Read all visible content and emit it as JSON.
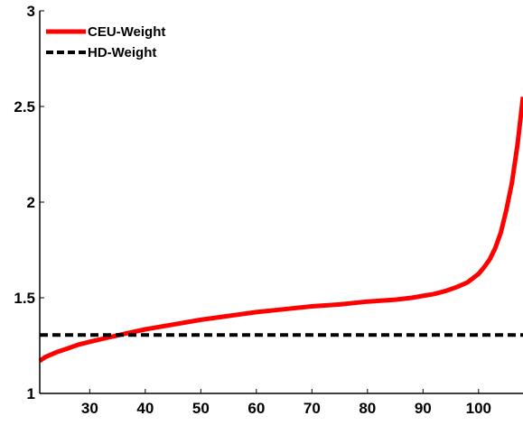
{
  "chart_data": {
    "type": "line",
    "title": "",
    "xlabel": "",
    "ylabel": "",
    "xlim": [
      21,
      108
    ],
    "ylim": [
      1,
      3
    ],
    "xticks": [
      30,
      40,
      50,
      60,
      70,
      80,
      90,
      100
    ],
    "yticks": [
      1,
      1.5,
      2,
      2.5,
      3
    ],
    "ytick_labels": [
      "1",
      "1.5",
      "2",
      "2.5",
      "3"
    ],
    "grid": false,
    "legend_position": "top-left",
    "series": [
      {
        "name": "CEU-Weight",
        "color": "#ff0000",
        "style": "solid",
        "x": [
          21,
          22,
          24,
          26,
          28,
          30,
          33,
          36,
          40,
          45,
          50,
          55,
          60,
          65,
          70,
          75,
          80,
          85,
          88,
          90,
          92,
          94,
          96,
          98,
          100,
          101,
          102,
          103,
          104,
          105,
          106,
          107,
          108
        ],
        "y": [
          1.17,
          1.19,
          1.215,
          1.235,
          1.255,
          1.27,
          1.29,
          1.31,
          1.335,
          1.36,
          1.385,
          1.405,
          1.425,
          1.44,
          1.455,
          1.465,
          1.48,
          1.49,
          1.5,
          1.51,
          1.52,
          1.535,
          1.555,
          1.58,
          1.625,
          1.66,
          1.7,
          1.76,
          1.84,
          1.96,
          2.1,
          2.3,
          2.55
        ]
      },
      {
        "name": "HD-Weight",
        "color": "#000000",
        "style": "dashed",
        "x": [
          21,
          108
        ],
        "y": [
          1.305,
          1.305
        ]
      }
    ]
  }
}
